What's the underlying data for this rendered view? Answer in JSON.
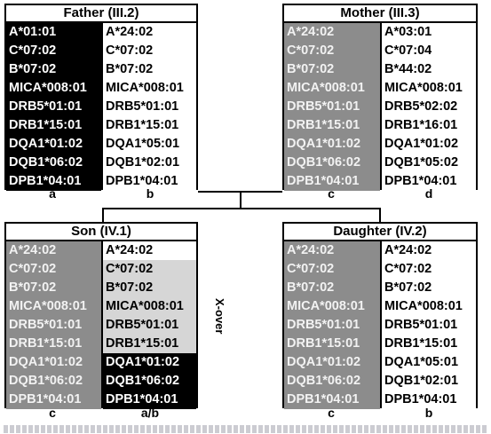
{
  "father": {
    "title": "Father (III.2)",
    "left": [
      "A*01:01",
      "C*07:02",
      "B*07:02",
      "MICA*008:01",
      "DRB5*01:01",
      "DRB1*15:01",
      "DQA1*01:02",
      "DQB1*06:02",
      "DPB1*04:01"
    ],
    "right": [
      "A*24:02",
      "C*07:02",
      "B*07:02",
      "MICA*008:01",
      "DRB5*01:01",
      "DRB1*15:01",
      "DQA1*05:01",
      "DQB1*02:01",
      "DPB1*04:01"
    ],
    "left_label": "a",
    "right_label": "b"
  },
  "mother": {
    "title": "Mother (III.3)",
    "left": [
      "A*24:02",
      "C*07:02",
      "B*07:02",
      "MICA*008:01",
      "DRB5*01:01",
      "DRB1*15:01",
      "DQA1*01:02",
      "DQB1*06:02",
      "DPB1*04:01"
    ],
    "right": [
      "A*03:01",
      "C*07:04",
      "B*44:02",
      "MICA*008:01",
      "DRB5*02:02",
      "DRB1*16:01",
      "DQA1*01:02",
      "DQB1*05:02",
      "DPB1*04:01"
    ],
    "left_label": "c",
    "right_label": "d"
  },
  "son": {
    "title": "Son (IV.1)",
    "left": [
      "A*24:02",
      "C*07:02",
      "B*07:02",
      "MICA*008:01",
      "DRB5*01:01",
      "DRB1*15:01",
      "DQA1*01:02",
      "DQB1*06:02",
      "DPB1*04:01"
    ],
    "right": [
      "A*24:02",
      "C*07:02",
      "B*07:02",
      "MICA*008:01",
      "DRB5*01:01",
      "DRB1*15:01",
      "DQA1*01:02",
      "DQB1*06:02",
      "DPB1*04:01"
    ],
    "left_label": "c",
    "right_label": "a/b",
    "crossover_label": "X-over"
  },
  "daughter": {
    "title": "Daughter (IV.2)",
    "left": [
      "A*24:02",
      "C*07:02",
      "B*07:02",
      "MICA*008:01",
      "DRB5*01:01",
      "DRB1*15:01",
      "DQA1*01:02",
      "DQB1*06:02",
      "DPB1*04:01"
    ],
    "right": [
      "A*24:02",
      "C*07:02",
      "B*07:02",
      "MICA*008:01",
      "DRB5*01:01",
      "DRB1*15:01",
      "DQA1*05:01",
      "DQB1*02:01",
      "DPB1*04:01"
    ],
    "left_label": "c",
    "right_label": "b"
  },
  "colors": {
    "haplotype_a": "#000000",
    "haplotype_b": "#ffffff",
    "haplotype_c": "#8c8c8c",
    "haplotype_d": "#ffffff",
    "crossover_b_segment": "#d6d6d6"
  }
}
